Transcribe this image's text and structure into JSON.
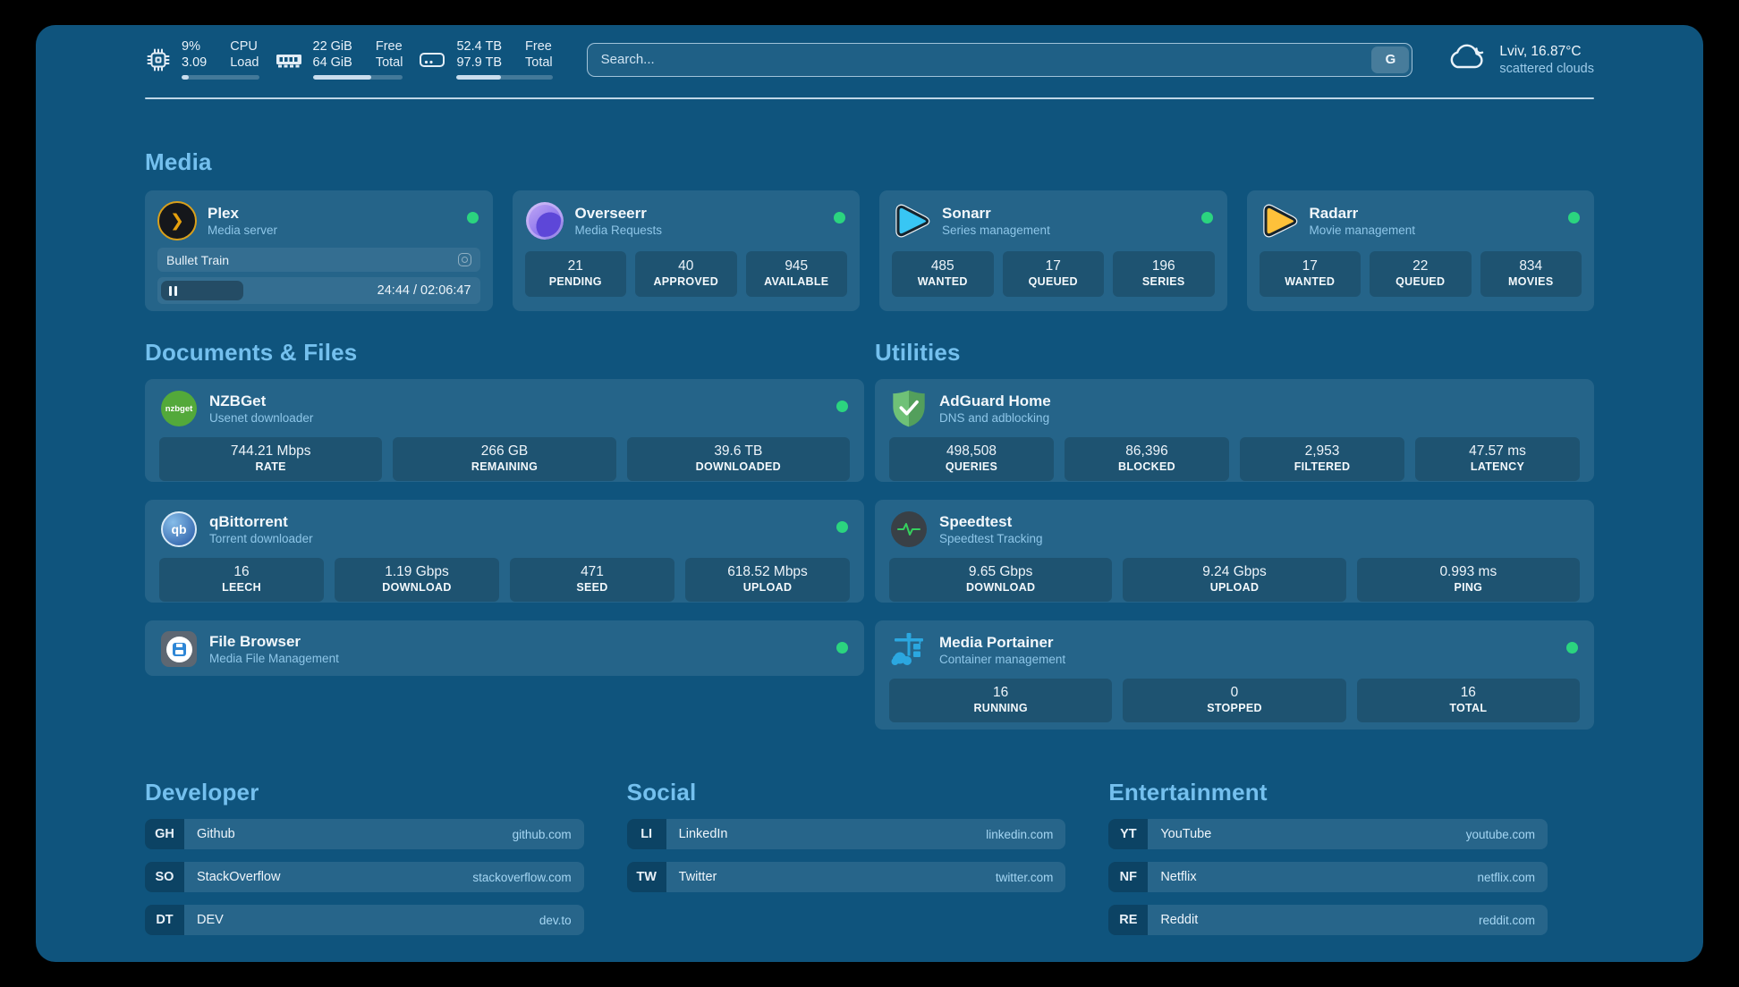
{
  "top_bar": {
    "cpu": {
      "value_top": "9%",
      "value_bottom": "3.09",
      "label_top": "CPU",
      "label_bottom": "Load",
      "fill_percent": 9
    },
    "memory": {
      "value_top": "22 GiB",
      "value_bottom": "64 GiB",
      "label_top": "Free",
      "label_bottom": "Total",
      "fill_percent": 65
    },
    "disk": {
      "value_top": "52.4 TB",
      "value_bottom": "97.9 TB",
      "label_top": "Free",
      "label_bottom": "Total",
      "fill_percent": 46
    },
    "search": {
      "placeholder": "Search...",
      "provider_button": "G"
    },
    "weather": {
      "location": "Lviv, 16.87°C",
      "condition": "scattered clouds"
    }
  },
  "colors": {
    "page_background": "#0f547d",
    "status_online": "#2bd47f",
    "heading_accent": "#74c0ee"
  },
  "sections": {
    "media": {
      "title": "Media",
      "cards": [
        {
          "name": "Plex",
          "desc": "Media server",
          "now_playing": {
            "title": "Bullet Train",
            "time": "24:44 / 02:06:47"
          }
        },
        {
          "name": "Overseerr",
          "desc": "Media Requests",
          "stats": [
            {
              "value": "21",
              "label": "PENDING"
            },
            {
              "value": "40",
              "label": "APPROVED"
            },
            {
              "value": "945",
              "label": "AVAILABLE"
            }
          ]
        },
        {
          "name": "Sonarr",
          "desc": "Series management",
          "stats": [
            {
              "value": "485",
              "label": "WANTED"
            },
            {
              "value": "17",
              "label": "QUEUED"
            },
            {
              "value": "196",
              "label": "SERIES"
            }
          ]
        },
        {
          "name": "Radarr",
          "desc": "Movie management",
          "stats": [
            {
              "value": "17",
              "label": "WANTED"
            },
            {
              "value": "22",
              "label": "QUEUED"
            },
            {
              "value": "834",
              "label": "MOVIES"
            }
          ]
        }
      ]
    },
    "documents": {
      "title": "Documents & Files",
      "cards": [
        {
          "name": "NZBGet",
          "desc": "Usenet downloader",
          "icon_text": "nzbget",
          "stats": [
            {
              "value": "744.21 Mbps",
              "label": "RATE"
            },
            {
              "value": "266 GB",
              "label": "REMAINING"
            },
            {
              "value": "39.6 TB",
              "label": "DOWNLOADED"
            }
          ]
        },
        {
          "name": "qBittorrent",
          "desc": "Torrent downloader",
          "icon_text": "qb",
          "stats": [
            {
              "value": "16",
              "label": "LEECH"
            },
            {
              "value": "1.19 Gbps",
              "label": "DOWNLOAD"
            },
            {
              "value": "471",
              "label": "SEED"
            },
            {
              "value": "618.52 Mbps",
              "label": "UPLOAD"
            }
          ]
        },
        {
          "name": "File Browser",
          "desc": "Media File Management"
        }
      ]
    },
    "utilities": {
      "title": "Utilities",
      "cards": [
        {
          "name": "AdGuard Home",
          "desc": "DNS and adblocking",
          "stats": [
            {
              "value": "498,508",
              "label": "QUERIES"
            },
            {
              "value": "86,396",
              "label": "BLOCKED"
            },
            {
              "value": "2,953",
              "label": "FILTERED"
            },
            {
              "value": "47.57 ms",
              "label": "LATENCY"
            }
          ]
        },
        {
          "name": "Speedtest",
          "desc": "Speedtest Tracking",
          "stats": [
            {
              "value": "9.65 Gbps",
              "label": "DOWNLOAD"
            },
            {
              "value": "9.24 Gbps",
              "label": "UPLOAD"
            },
            {
              "value": "0.993 ms",
              "label": "PING"
            }
          ]
        },
        {
          "name": "Media Portainer",
          "desc": "Container management",
          "stats": [
            {
              "value": "16",
              "label": "RUNNING"
            },
            {
              "value": "0",
              "label": "STOPPED"
            },
            {
              "value": "16",
              "label": "TOTAL"
            }
          ]
        }
      ]
    }
  },
  "bookmarks": {
    "groups": [
      {
        "title": "Developer",
        "links": [
          {
            "abbr": "GH",
            "name": "Github",
            "url": "github.com"
          },
          {
            "abbr": "SO",
            "name": "StackOverflow",
            "url": "stackoverflow.com"
          },
          {
            "abbr": "DT",
            "name": "DEV",
            "url": "dev.to"
          }
        ]
      },
      {
        "title": "Social",
        "links": [
          {
            "abbr": "LI",
            "name": "LinkedIn",
            "url": "linkedin.com"
          },
          {
            "abbr": "TW",
            "name": "Twitter",
            "url": "twitter.com"
          }
        ]
      },
      {
        "title": "Entertainment",
        "links": [
          {
            "abbr": "YT",
            "name": "YouTube",
            "url": "youtube.com"
          },
          {
            "abbr": "NF",
            "name": "Netflix",
            "url": "netflix.com"
          },
          {
            "abbr": "RE",
            "name": "Reddit",
            "url": "reddit.com"
          }
        ]
      }
    ]
  }
}
